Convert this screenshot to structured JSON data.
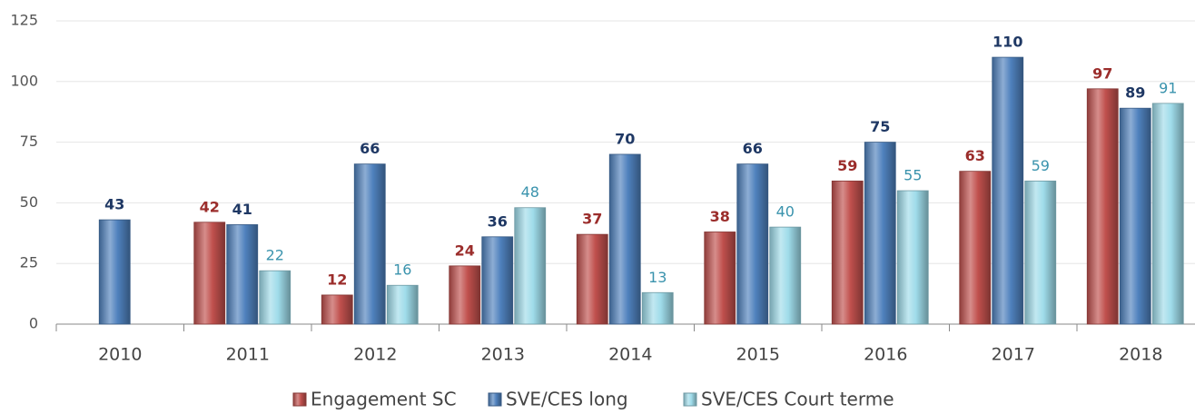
{
  "chart_data": {
    "type": "bar",
    "categories": [
      "2010",
      "2011",
      "2012",
      "2013",
      "2014",
      "2015",
      "2016",
      "2017",
      "2018"
    ],
    "series": [
      {
        "name": "Engagement SC",
        "color": "#c0504d",
        "values": [
          null,
          42,
          12,
          24,
          37,
          38,
          59,
          63,
          97
        ]
      },
      {
        "name": "SVE/CES long",
        "color": "#4f81bd",
        "values": [
          43,
          41,
          66,
          36,
          70,
          66,
          75,
          110,
          89
        ]
      },
      {
        "name": "SVE/CES Court terme",
        "color": "#9fdcea",
        "values": [
          null,
          22,
          16,
          48,
          13,
          40,
          55,
          59,
          91
        ]
      }
    ],
    "ylim": [
      0,
      125
    ],
    "yticks": [
      0,
      25,
      50,
      75,
      100,
      125
    ],
    "grid": true,
    "legend": "bottom"
  }
}
